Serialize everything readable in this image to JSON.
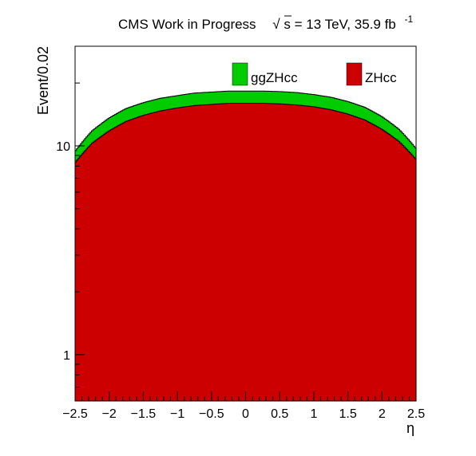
{
  "header": {
    "prefix": "CMS Work in Progress",
    "sqrt_sign": "√",
    "energy_text": "s = 13 TeV, 35.9 fb",
    "exponent": "-1"
  },
  "chart_data": {
    "type": "area",
    "subtype": "stacked histogram",
    "x": {
      "label": "η",
      "range": [
        -2.5,
        2.5
      ],
      "bin_width": 0.02,
      "ticks": [
        -2.5,
        -2,
        -1.5,
        -1,
        -0.5,
        0,
        0.5,
        1,
        1.5,
        2,
        2.5
      ],
      "tick_labels": [
        "−2.5",
        "−2",
        "−1.5",
        "−1",
        "−0.5",
        "0",
        "0.5",
        "1",
        "1.5",
        "2",
        "2.5"
      ]
    },
    "y": {
      "label": "Event/0.02",
      "scale": "log",
      "range": [
        0.6,
        30
      ],
      "ticks": [
        1,
        10
      ],
      "tick_labels": [
        "1",
        "10"
      ]
    },
    "series": [
      {
        "name": "ZHcc",
        "color": "#cc0000",
        "x": [
          -2.5,
          -2.25,
          -2.0,
          -1.75,
          -1.5,
          -1.25,
          -1.0,
          -0.75,
          -0.5,
          -0.25,
          0.0,
          0.25,
          0.5,
          0.75,
          1.0,
          1.25,
          1.5,
          1.75,
          2.0,
          2.25,
          2.5
        ],
        "values": [
          8.3,
          10.3,
          11.8,
          13.1,
          14.0,
          14.7,
          15.2,
          15.6,
          15.8,
          16.0,
          16.0,
          16.0,
          15.9,
          15.7,
          15.4,
          14.9,
          14.2,
          13.3,
          12.0,
          10.5,
          8.6
        ]
      },
      {
        "name": "ggZHcc",
        "color": "#00cc00",
        "x": [
          -2.5,
          -2.25,
          -2.0,
          -1.75,
          -1.5,
          -1.25,
          -1.0,
          -0.75,
          -0.5,
          -0.25,
          0.0,
          0.25,
          0.5,
          0.75,
          1.0,
          1.25,
          1.5,
          1.75,
          2.0,
          2.25,
          2.5
        ],
        "values": [
          1.1,
          1.5,
          1.8,
          2.0,
          2.1,
          2.2,
          2.2,
          2.3,
          2.3,
          2.3,
          2.3,
          2.3,
          2.3,
          2.3,
          2.2,
          2.2,
          2.1,
          2.0,
          1.8,
          1.5,
          1.1
        ]
      }
    ],
    "legend": {
      "placement": "top-right",
      "entries": [
        {
          "label": "ggZHcc",
          "color": "#00cc00"
        },
        {
          "label": "ZHcc",
          "color": "#cc0000"
        }
      ]
    },
    "grid": false
  }
}
